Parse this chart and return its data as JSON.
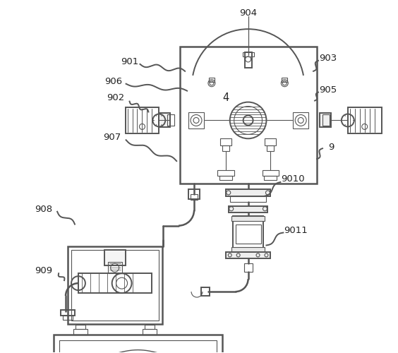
{
  "bg_color": "#ffffff",
  "line_color": "#555555",
  "label_color": "#222222",
  "figsize": [
    5.64,
    5.0
  ],
  "dpi": 100
}
